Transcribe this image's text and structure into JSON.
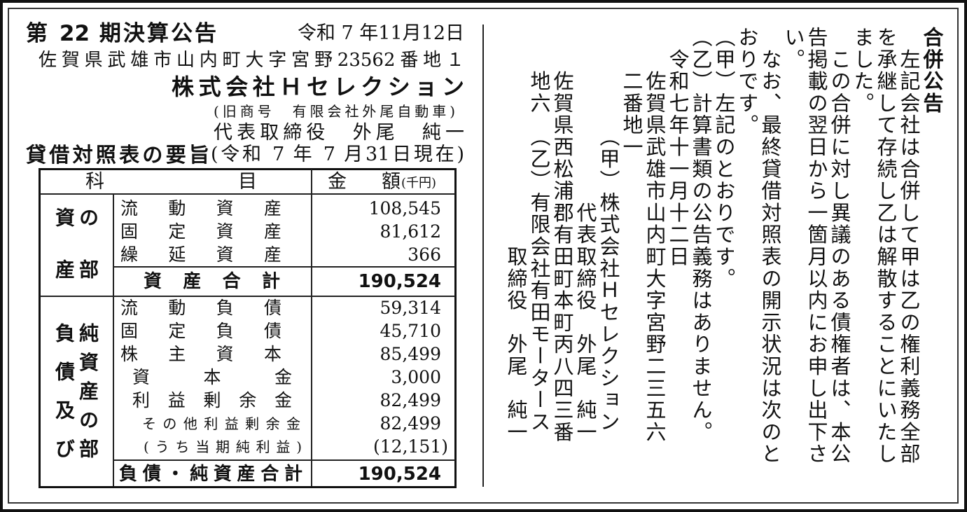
{
  "settlement": {
    "title": "第 22 期決算公告",
    "date": "令和 7 年11月12日",
    "address": "佐賀県武雄市山内町大字宮野23562番地１",
    "company": "株式会社Ｈセレクション",
    "former_name": "(旧商号　有限会社外尾自動車)",
    "representative": "代表取締役　外尾　純一",
    "bs_title": "貸借対照表の要旨",
    "bs_date": "(令和 7 年 7 月31日現在)"
  },
  "table": {
    "header": {
      "item": "科目",
      "amount": "金額",
      "unit": "(千円)"
    },
    "assets": {
      "section_label_col1": "資産",
      "section_label_col2": "の部",
      "rows": [
        {
          "label": "流動資産",
          "value": "108,545"
        },
        {
          "label": "固定資産",
          "value": "81,612"
        },
        {
          "label": "繰延資産",
          "value": "366"
        }
      ],
      "total": {
        "label": "資産合計",
        "value": "190,524"
      }
    },
    "liabilities": {
      "section_label_col1": "負債及び",
      "section_label_col2": "純資産の部",
      "rows": [
        {
          "label": "流動負債",
          "value": "59,314"
        },
        {
          "label": "固定負債",
          "value": "45,710"
        },
        {
          "label": "株主資本",
          "value": "85,499"
        },
        {
          "label": "資本金",
          "value": "3,000"
        },
        {
          "label": "利益剰余金",
          "value": "82,499"
        },
        {
          "label": "その他利益剰余金",
          "value": "82,499"
        },
        {
          "label": "(うち当期純利益)",
          "value": "(12,151)"
        }
      ],
      "total": {
        "label": "負債・純資産合計",
        "value": "190,524"
      }
    }
  },
  "merger": {
    "title": "合併公告",
    "columns": [
      "　左記会社は合併して甲は乙の権利義務全部",
      "を承継して存続し乙は解散することにいたし",
      "ました。",
      "　この合併に対し異議のある債権者は、本公",
      "告掲載の翌日から一箇月以内にお申し出下さ",
      "い。",
      "　なお、最終貸借対照表の開示状況は次のと",
      "おりです。",
      "（甲）左記のとおりです。",
      "（乙）計算書類の公告義務はありません。",
      "　令和七年十一月十二日",
      "　　佐賀県武雄市山内町大字宮野二三五六",
      "　　二番地一",
      "　　　　　（甲）株式会社Ｈセレクション",
      "　　　　　　　　代表取締役　外尾　純一",
      "　　佐賀県西松浦郡有田町本町丙八四三番",
      "　　地六　（乙）有限会社有田モータース",
      "　　　　　　　　　　取締役　外尾　純一"
    ]
  }
}
